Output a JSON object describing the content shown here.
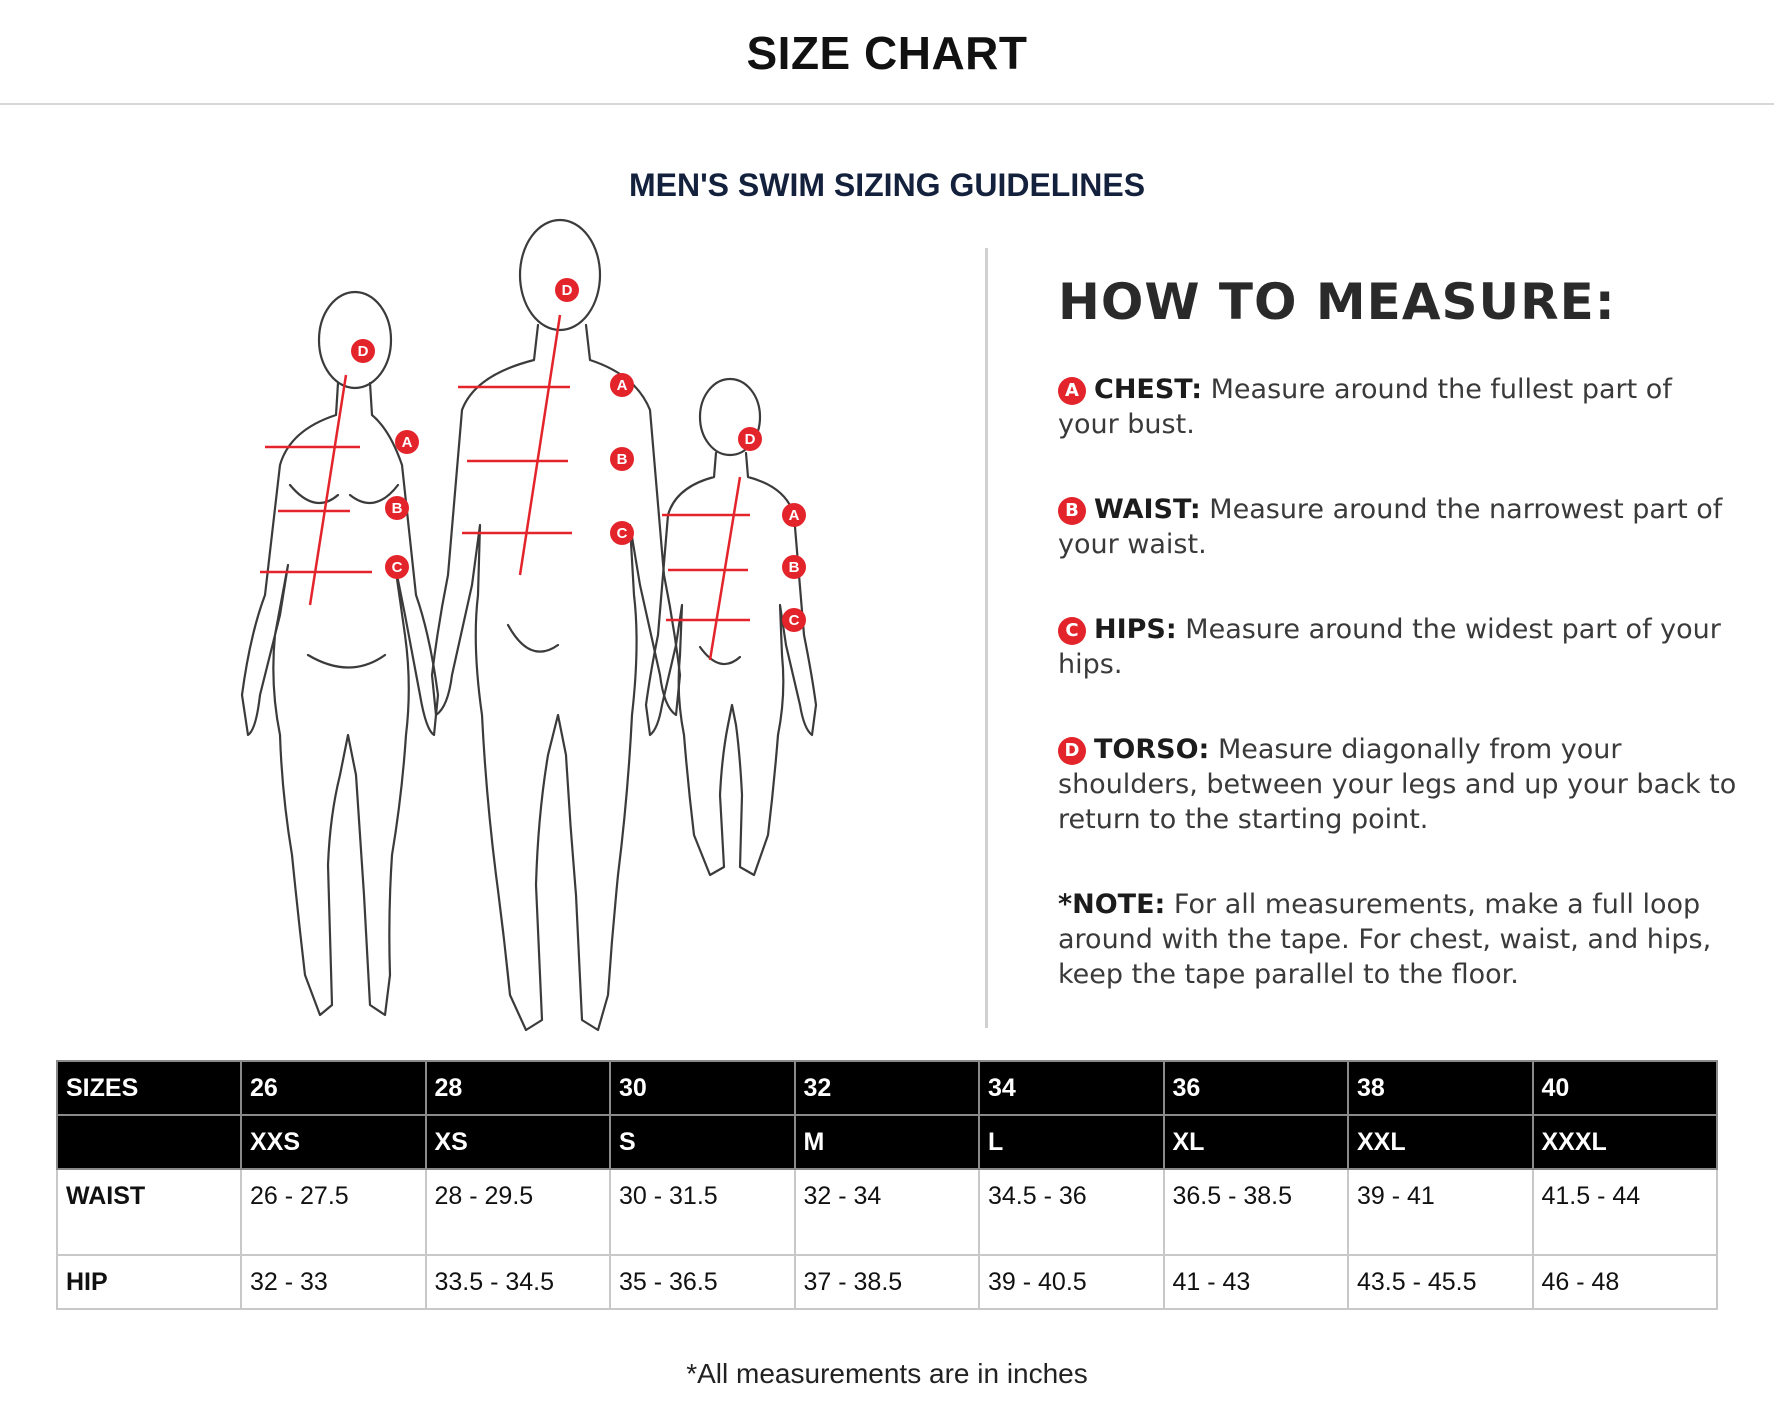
{
  "page_title": "SIZE CHART",
  "section_title": "MEN'S SWIM SIZING GUIDELINES",
  "how_to": {
    "title": "HOW TO MEASURE:",
    "items": [
      {
        "badge": "A",
        "label": "CHEST:",
        "text": "Measure around the fullest part of your bust."
      },
      {
        "badge": "B",
        "label": "WAIST:",
        "text": "Measure around the narrowest part of your waist."
      },
      {
        "badge": "C",
        "label": "HIPS:",
        "text": "Measure around the widest part of your hips."
      },
      {
        "badge": "D",
        "label": "TORSO:",
        "text": "Measure diagonally from your shoulders, between your legs and up your back to return to the starting point."
      }
    ],
    "note_label": "*NOTE:",
    "note_text": "For all measurements, make a full loop around with the tape. For chest, waist, and hips, keep the tape parallel to the floor."
  },
  "figure_badges": [
    "A",
    "B",
    "C",
    "D"
  ],
  "accent_color": "#e3242b",
  "table": {
    "header_label": "SIZES",
    "sizes": [
      "26",
      "28",
      "30",
      "32",
      "34",
      "36",
      "38",
      "40"
    ],
    "letter_sizes": [
      "XXS",
      "XS",
      "S",
      "M",
      "L",
      "XL",
      "XXL",
      "XXXL"
    ],
    "rows": [
      {
        "label": "WAIST",
        "values": [
          "26 - 27.5",
          "28 - 29.5",
          "30 - 31.5",
          "32 - 34",
          "34.5 - 36",
          "36.5 - 38.5",
          "39 - 41",
          "41.5 - 44"
        ]
      },
      {
        "label": "HIP",
        "values": [
          "32 - 33",
          "33.5 - 34.5",
          "35 - 36.5",
          "37 - 38.5",
          "39 - 40.5",
          "41 - 43",
          "43.5 - 45.5",
          "46 - 48"
        ]
      }
    ]
  },
  "footnote": "*All measurements are in inches"
}
